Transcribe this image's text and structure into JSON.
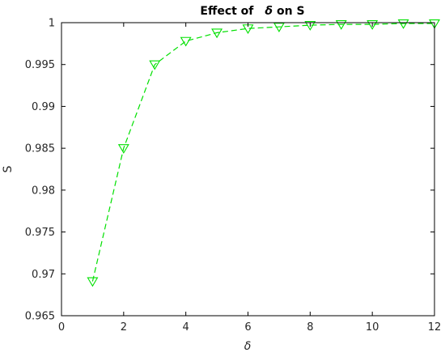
{
  "chart_data": {
    "type": "line",
    "title_prefix": "Effect of",
    "title_symbol": "δ",
    "title_suffix": "on S",
    "xlabel": "δ",
    "ylabel": "S",
    "xlim": [
      0,
      12
    ],
    "ylim": [
      0.965,
      1.0
    ],
    "xticks": [
      0,
      2,
      4,
      6,
      8,
      10,
      12
    ],
    "yticks": [
      0.965,
      0.97,
      0.975,
      0.98,
      0.985,
      0.99,
      0.995,
      1.0
    ],
    "ytick_labels": [
      "0.965",
      "0.97",
      "0.975",
      "0.98",
      "0.985",
      "0.99",
      "0.995",
      "1"
    ],
    "grid": false,
    "color": "#00e000",
    "line_style": "dashed",
    "marker": "down-triangle",
    "x": [
      1,
      2,
      3,
      4,
      5,
      6,
      7,
      8,
      9,
      10,
      11,
      12
    ],
    "y": [
      0.9691,
      0.985,
      0.995,
      0.9978,
      0.9988,
      0.9993,
      0.9995,
      0.9997,
      0.9998,
      0.9998,
      0.9999,
      0.9999
    ]
  }
}
